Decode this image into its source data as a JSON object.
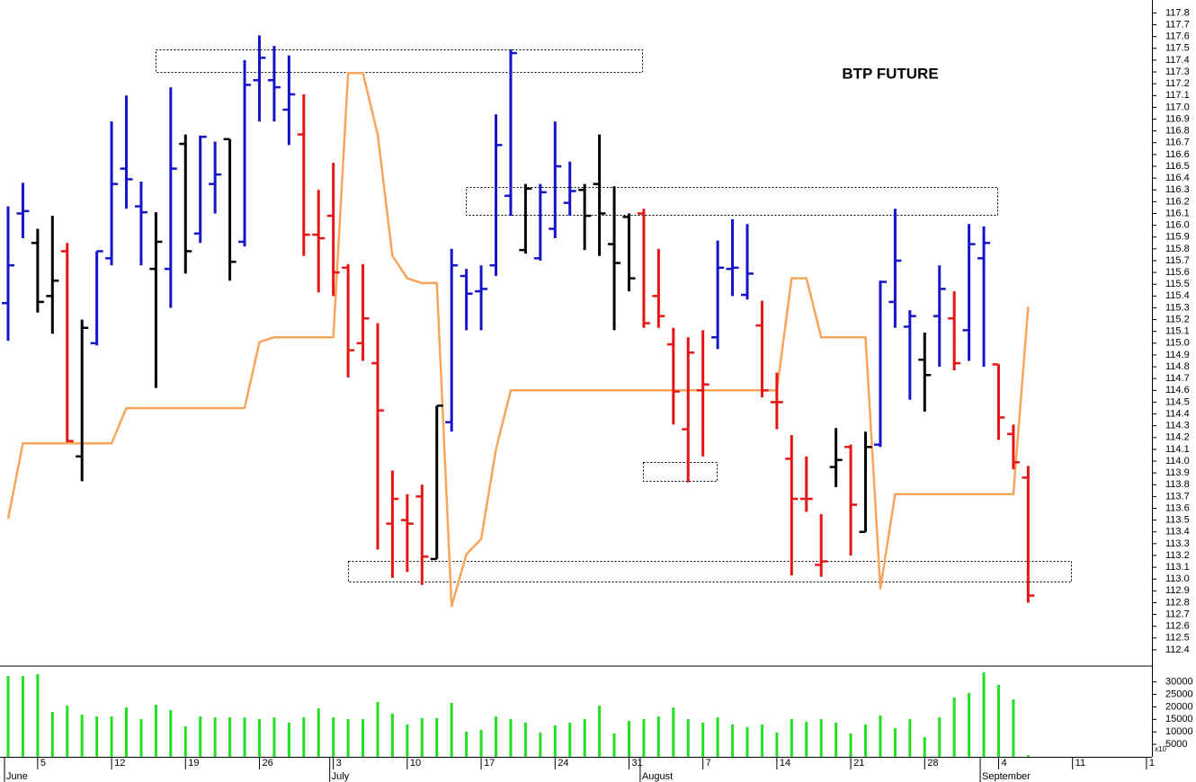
{
  "chart_data": [
    {
      "type": "ohlc",
      "title": "BTP FUTURE",
      "categories": [
        null,
        null,
        "5",
        null,
        null,
        null,
        null,
        "12",
        null,
        null,
        null,
        null,
        "19",
        null,
        null,
        null,
        null,
        "26",
        null,
        null,
        null,
        null,
        "3",
        null,
        null,
        null,
        null,
        "10",
        null,
        null,
        null,
        null,
        "17",
        null,
        null,
        null,
        null,
        "24",
        null,
        null,
        null,
        null,
        "31",
        null,
        null,
        null,
        null,
        "7",
        null,
        null,
        null,
        null,
        "14",
        null,
        null,
        null,
        null,
        "21",
        null,
        null,
        null,
        null,
        "28",
        null,
        null,
        null,
        null,
        "4",
        null,
        null,
        null,
        null,
        "11",
        null,
        null,
        null,
        null,
        "1"
      ],
      "months": [
        "June",
        null,
        null,
        null,
        null,
        null,
        null,
        null,
        null,
        null,
        null,
        null,
        null,
        null,
        null,
        null,
        null,
        null,
        null,
        null,
        null,
        null,
        "July",
        null,
        null,
        null,
        null,
        null,
        null,
        null,
        null,
        null,
        null,
        null,
        null,
        null,
        null,
        null,
        null,
        null,
        null,
        null,
        null,
        "August",
        null,
        null,
        null,
        null,
        null,
        null,
        null,
        null,
        null,
        null,
        null,
        null,
        null,
        null,
        null,
        null,
        null,
        null,
        null,
        null,
        null,
        null,
        "September",
        null,
        null,
        null,
        null,
        null,
        null,
        null,
        null,
        null,
        null,
        null
      ],
      "open": [
        115.34,
        116.1,
        115.85,
        115.4,
        115.78,
        114.04,
        115.0,
        115.72,
        116.48,
        116.16,
        115.63,
        115.63,
        116.69,
        115.93,
        116.35,
        116.73,
        115.86,
        117.23,
        117.23,
        116.98,
        116.77,
        115.92,
        116.08,
        115.64,
        115.0,
        114.83,
        113.47,
        113.5,
        113.7,
        113.17,
        114.33,
        115.57,
        115.44,
        115.66,
        116.25,
        115.79,
        115.72,
        115.97,
        116.19,
        116.3,
        116.35,
        115.84,
        116.07,
        116.1,
        115.4,
        114.99,
        114.27,
        114.6,
        115.05,
        115.63,
        115.41,
        115.15,
        114.5,
        114.02,
        113.68,
        113.12,
        113.95,
        114.12,
        113.4,
        114.14,
        115.35,
        115.14,
        114.86,
        115.23,
        115.21,
        115.11,
        115.72,
        114.82,
        114.23,
        113.86,
        null,
        null,
        null,
        null,
        null,
        null,
        null,
        null
      ],
      "high": [
        116.16,
        116.36,
        115.97,
        116.08,
        115.85,
        115.2,
        115.78,
        116.88,
        117.1,
        116.37,
        116.11,
        117.17,
        116.77,
        116.76,
        116.71,
        116.73,
        117.4,
        117.61,
        117.52,
        117.44,
        117.11,
        116.3,
        116.53,
        115.67,
        115.67,
        115.17,
        113.92,
        113.72,
        113.8,
        114.47,
        115.8,
        115.63,
        115.66,
        116.94,
        117.49,
        116.35,
        116.35,
        116.88,
        116.54,
        116.35,
        116.77,
        116.33,
        116.1,
        116.14,
        115.8,
        115.13,
        115.05,
        115.11,
        115.87,
        116.05,
        116.01,
        115.36,
        114.75,
        114.22,
        114.04,
        113.55,
        114.28,
        114.14,
        114.25,
        115.53,
        116.14,
        115.28,
        115.09,
        115.66,
        115.44,
        116.01,
        115.99,
        114.82,
        114.31,
        113.96,
        null,
        null,
        null,
        null,
        null,
        null,
        null,
        null
      ],
      "low": [
        115.02,
        115.89,
        115.26,
        115.08,
        114.16,
        113.83,
        114.98,
        115.66,
        116.14,
        115.66,
        114.62,
        115.3,
        115.59,
        115.85,
        116.1,
        115.53,
        115.82,
        116.88,
        116.88,
        116.68,
        115.74,
        115.43,
        115.4,
        114.71,
        114.85,
        113.25,
        113.01,
        113.06,
        112.95,
        113.17,
        114.25,
        115.11,
        115.11,
        115.57,
        116.08,
        115.76,
        115.7,
        115.89,
        116.08,
        115.79,
        115.74,
        115.11,
        115.44,
        115.13,
        115.13,
        114.31,
        113.82,
        114.04,
        114.95,
        115.4,
        115.37,
        114.54,
        114.27,
        113.03,
        113.57,
        113.02,
        113.78,
        113.2,
        113.4,
        114.12,
        115.13,
        114.52,
        114.42,
        114.8,
        114.77,
        114.85,
        114.8,
        114.18,
        113.93,
        112.8,
        null,
        null,
        null,
        null,
        null,
        null,
        null,
        null
      ],
      "close": [
        115.66,
        116.12,
        115.35,
        115.53,
        114.17,
        115.13,
        115.78,
        116.35,
        116.39,
        116.11,
        115.86,
        116.48,
        115.78,
        116.75,
        116.43,
        115.69,
        117.19,
        117.42,
        117.17,
        117.11,
        115.92,
        115.89,
        115.6,
        114.94,
        115.21,
        114.43,
        113.68,
        113.47,
        113.19,
        114.47,
        115.66,
        115.42,
        115.46,
        116.68,
        117.46,
        116.31,
        116.28,
        116.5,
        116.29,
        116.08,
        116.1,
        115.68,
        115.55,
        115.17,
        115.23,
        114.59,
        114.92,
        114.65,
        115.64,
        115.64,
        115.59,
        114.6,
        114.5,
        113.68,
        113.68,
        113.15,
        114.01,
        113.63,
        114.12,
        115.52,
        115.7,
        115.23,
        114.73,
        115.46,
        114.83,
        115.84,
        115.85,
        114.37,
        113.99,
        112.86,
        null,
        null,
        null,
        null,
        null,
        null,
        null,
        null
      ],
      "colors": [
        "#1414c8",
        "#1414c8",
        "#000000",
        "#000000",
        "#e81414",
        "#000000",
        "#1414c8",
        "#1414c8",
        "#1414c8",
        "#1414c8",
        "#000000",
        "#1414c8",
        "#000000",
        "#1414c8",
        "#1414c8",
        "#000000",
        "#1414c8",
        "#1414c8",
        "#1414c8",
        "#1414c8",
        "#e81414",
        "#e81414",
        "#e81414",
        "#e81414",
        "#e81414",
        "#e81414",
        "#e81414",
        "#e81414",
        "#e81414",
        "#000000",
        "#1414c8",
        "#1414c8",
        "#1414c8",
        "#1414c8",
        "#1414c8",
        "#000000",
        "#1414c8",
        "#1414c8",
        "#1414c8",
        "#000000",
        "#000000",
        "#000000",
        "#000000",
        "#e81414",
        "#e81414",
        "#e81414",
        "#e81414",
        "#e81414",
        "#1414c8",
        "#1414c8",
        "#1414c8",
        "#e81414",
        "#e81414",
        "#e81414",
        "#e81414",
        "#e81414",
        "#000000",
        "#e81414",
        "#000000",
        "#1414c8",
        "#1414c8",
        "#1414c8",
        "#000000",
        "#1414c8",
        "#e81414",
        "#1414c8",
        "#1414c8",
        "#e81414",
        "#e81414",
        "#e81414",
        null,
        null,
        null,
        null,
        null,
        null,
        null,
        null
      ],
      "line": {
        "color": "#f7a55a",
        "values": [
          113.51,
          114.15,
          114.15,
          114.15,
          114.15,
          114.15,
          114.15,
          114.15,
          114.45,
          114.45,
          114.45,
          114.45,
          114.45,
          114.45,
          114.45,
          114.45,
          114.45,
          115.01,
          115.05,
          115.05,
          115.05,
          115.05,
          115.05,
          117.29,
          117.29,
          116.77,
          115.74,
          115.55,
          115.51,
          115.51,
          112.77,
          113.21,
          113.34,
          114.1,
          114.6,
          114.6,
          114.6,
          114.6,
          114.6,
          114.6,
          114.6,
          114.6,
          114.6,
          114.6,
          114.6,
          114.6,
          114.6,
          114.6,
          114.6,
          114.6,
          114.6,
          114.6,
          114.6,
          115.55,
          115.55,
          115.05,
          115.05,
          115.05,
          115.05,
          112.92,
          113.72,
          113.72,
          113.72,
          113.72,
          113.72,
          113.72,
          113.72,
          113.72,
          113.72,
          115.31,
          null,
          null,
          null,
          null,
          null,
          null,
          null,
          null
        ]
      },
      "ylim": [
        112.27,
        117.91
      ],
      "yticks": [
        112.4,
        112.5,
        112.6,
        112.7,
        112.8,
        112.9,
        {
          "value": 113,
          "label": "113.0"
        },
        113.1,
        113.2,
        113.3,
        113.4,
        113.5,
        113.6,
        113.7,
        113.8,
        113.9,
        {
          "value": 114,
          "label": "114.0"
        },
        114.1,
        114.2,
        114.3,
        114.4,
        114.5,
        114.6,
        114.7,
        114.8,
        114.9,
        {
          "value": 115,
          "label": "115.0"
        },
        115.1,
        115.2,
        115.3,
        115.4,
        115.5,
        115.6,
        115.7,
        115.8,
        115.9,
        {
          "value": 116,
          "label": "116.0"
        },
        116.1,
        116.2,
        116.3,
        116.4,
        116.5,
        116.6,
        116.7,
        116.8,
        116.9,
        {
          "value": 117,
          "label": "117.0"
        },
        117.1,
        117.2,
        117.3,
        117.4,
        117.5,
        117.6,
        117.7,
        117.8
      ]
    },
    {
      "type": "bar",
      "color": "#22e022",
      "values": [
        32400,
        32400,
        33100,
        18000,
        20500,
        16900,
        16200,
        16200,
        19800,
        15100,
        20900,
        18700,
        12200,
        16200,
        15800,
        15800,
        15800,
        15100,
        15800,
        13700,
        15800,
        19400,
        15800,
        15100,
        15100,
        22000,
        17300,
        13000,
        15500,
        15500,
        21600,
        10100,
        10800,
        16200,
        15100,
        13700,
        9700,
        12600,
        13700,
        15100,
        20500,
        9400,
        14400,
        15100,
        16200,
        19800,
        15100,
        13700,
        15800,
        13000,
        11900,
        13000,
        9700,
        15100,
        14000,
        15100,
        13700,
        9400,
        13000,
        16600,
        11500,
        15100,
        7900,
        15800,
        23800,
        25600,
        33800,
        28800,
        23000,
        700,
        null,
        null,
        null,
        null,
        null,
        null,
        null,
        null
      ],
      "ylim": [
        0,
        36000
      ],
      "yticks": [
        5000,
        10000,
        15000,
        20000,
        25000,
        30000
      ],
      "scale_label": "x10"
    }
  ]
}
